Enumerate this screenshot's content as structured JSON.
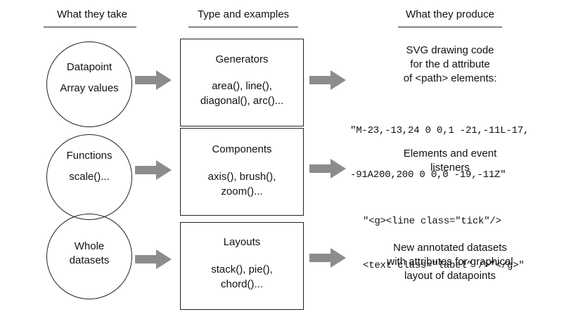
{
  "headers": {
    "take": "What they take",
    "type": "Type and examples",
    "produce": "What they produce"
  },
  "rows": [
    {
      "input": [
        "Datapoint",
        "Array values"
      ],
      "type": "Generators",
      "examples": [
        "area(), line(),",
        "diagonal(), arc()..."
      ],
      "produce": [
        "SVG drawing code",
        "for the d attribute",
        "of <path> elements:"
      ],
      "code": [
        "\"M-23,-13,24 0 0,1 -21,-11L-17,",
        "-91A200,200 0 0,0 -19,-11Z\""
      ]
    },
    {
      "input": [
        "Functions",
        "scale()..."
      ],
      "type": "Components",
      "examples": [
        "axis(), brush(),",
        "zoom()..."
      ],
      "produce": [
        "Elements and event",
        "listeners"
      ],
      "code": [
        "\"<g><line class=\"tick\"/>",
        "<text class=\"label” />”</g>\""
      ]
    },
    {
      "input": [
        "Whole",
        "datasets"
      ],
      "type": "Layouts",
      "examples": [
        "stack(), pie(),",
        "chord()..."
      ],
      "produce": [
        "New annotated datasets",
        "with attributes for graphical",
        "layout of datapoints"
      ],
      "code": []
    }
  ],
  "colors": {
    "arrow": "#8c8c8c",
    "stroke": "#222222"
  }
}
